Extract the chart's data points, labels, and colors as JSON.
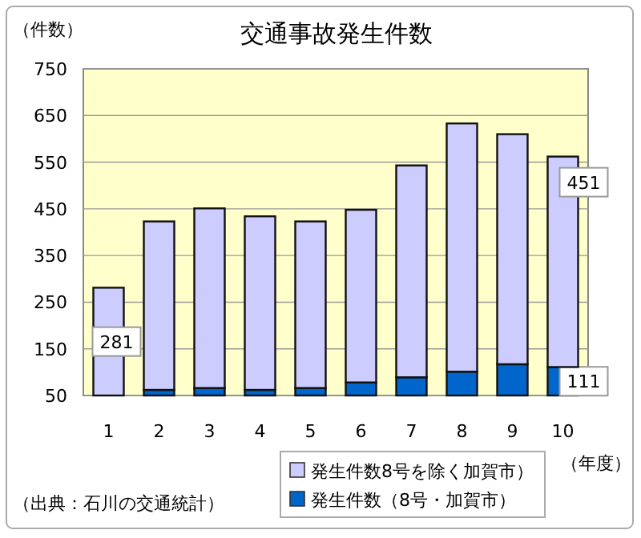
{
  "chart_data": {
    "type": "bar",
    "stacked": true,
    "title": "交通事故発生件数",
    "ylabel": "（件数）",
    "xlabel": "（年度）",
    "categories": [
      "1",
      "2",
      "3",
      "4",
      "5",
      "6",
      "7",
      "8",
      "9",
      "10"
    ],
    "series": [
      {
        "name": "発生件数（8号・加賀市）",
        "color": "#0066cc",
        "values": [
          null,
          62,
          66,
          62,
          66,
          78,
          89,
          101,
          117,
          111
        ],
        "value_labels": [
          null,
          null,
          null,
          null,
          null,
          null,
          null,
          null,
          null,
          "111"
        ]
      },
      {
        "name": "発生件数8号を除く加賀市）",
        "color": "#ccccff",
        "values": [
          281,
          361,
          385,
          372,
          357,
          370,
          454,
          532,
          493,
          451
        ],
        "value_labels": [
          "281",
          null,
          null,
          null,
          null,
          null,
          null,
          null,
          null,
          "451"
        ]
      }
    ],
    "ylim": [
      50,
      750
    ],
    "yticks": [
      50,
      150,
      250,
      350,
      450,
      550,
      650,
      750
    ],
    "grid": "y",
    "legend": "bottom",
    "annotations": [
      "（出典：石川の交通統計）"
    ]
  }
}
